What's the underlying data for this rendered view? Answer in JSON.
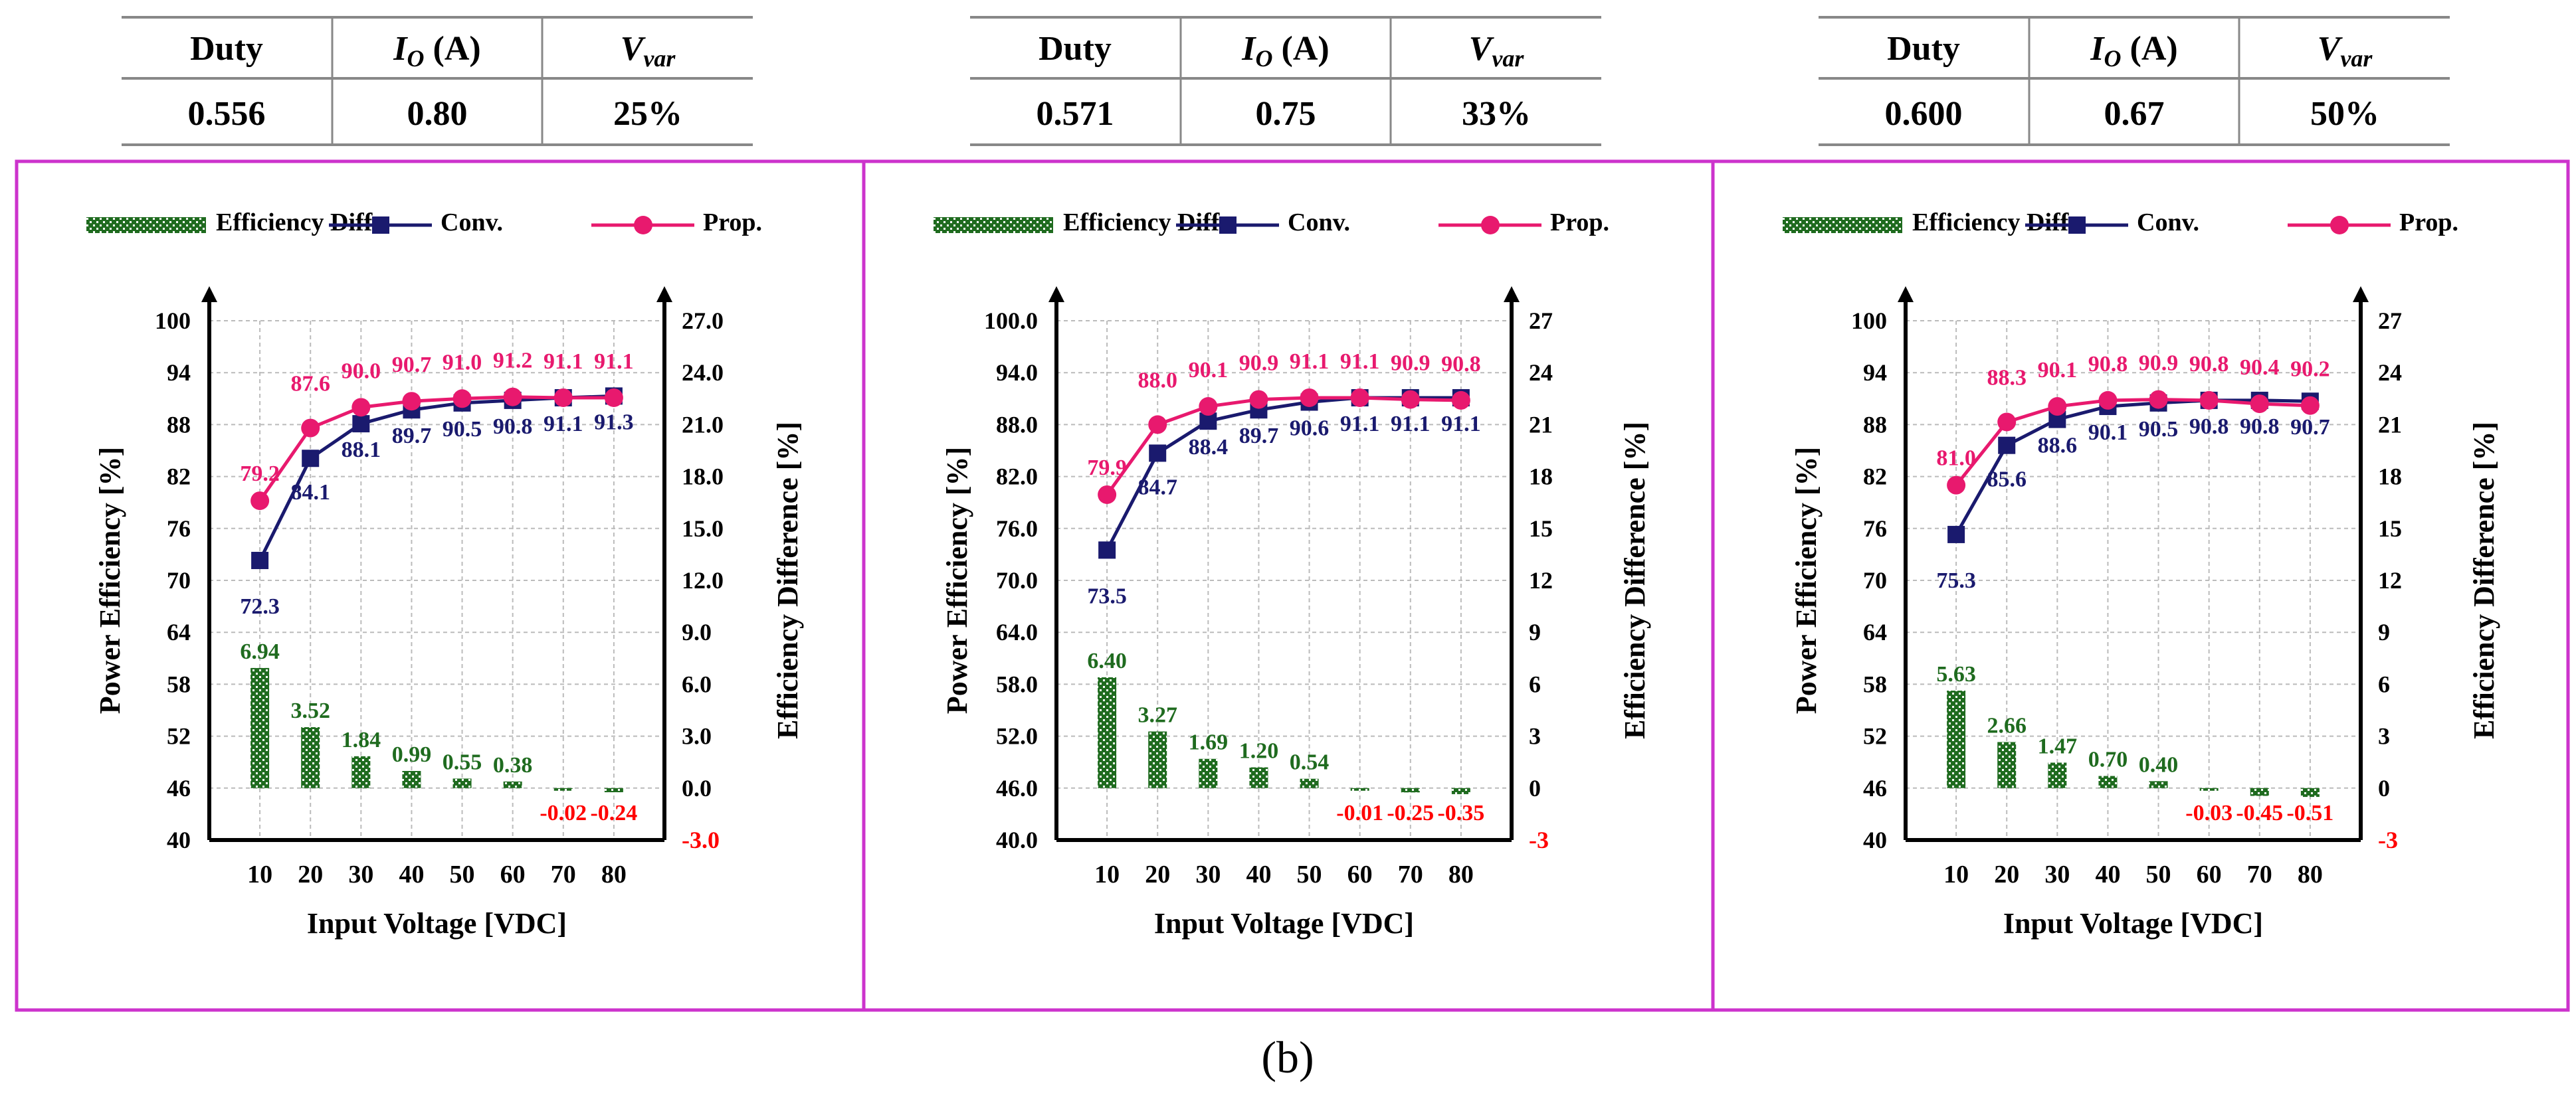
{
  "caption": "(b)",
  "colors": {
    "conv": "#1a1a6e",
    "prop": "#e8196e",
    "diff": "#1f6b1f",
    "neg": "#ff0000",
    "frame": "#cc33cc"
  },
  "tables": [
    {
      "headers": [
        "Duty",
        "I_O (A)",
        "V_var"
      ],
      "values": [
        "0.556",
        "0.80",
        "25%"
      ]
    },
    {
      "headers": [
        "Duty",
        "I_O (A)",
        "V_var"
      ],
      "values": [
        "0.571",
        "0.75",
        "33%"
      ]
    },
    {
      "headers": [
        "Duty",
        "I_O (A)",
        "V_var"
      ],
      "values": [
        "0.600",
        "0.67",
        "50%"
      ]
    }
  ],
  "chart_data": [
    {
      "type": "bar+line",
      "xlabel": "Input Voltage [VDC]",
      "ylabel": "Power Efficiency [%]",
      "y2label": "Efficiency Difference [%]",
      "legend": [
        "Efficiency Diff.",
        "Conv.",
        "Prop."
      ],
      "categories": [
        10,
        20,
        30,
        40,
        50,
        60,
        70,
        80
      ],
      "ylim": [
        40,
        100
      ],
      "y2lim": [
        -3,
        27
      ],
      "yticks": [
        "40",
        "46",
        "52",
        "58",
        "64",
        "70",
        "76",
        "82",
        "88",
        "94",
        "100"
      ],
      "y2ticks": [
        "-3.0",
        "0.0",
        "3.0",
        "6.0",
        "9.0",
        "12.0",
        "15.0",
        "18.0",
        "21.0",
        "24.0",
        "27.0"
      ],
      "series": [
        {
          "name": "Conv.",
          "axis": "left",
          "values": [
            72.3,
            84.1,
            88.1,
            89.7,
            90.5,
            90.8,
            91.1,
            91.3
          ],
          "labels": [
            "72.3",
            "84.1",
            "88.1",
            "89.7",
            "90.5",
            "90.8",
            "91.1",
            "91.3"
          ]
        },
        {
          "name": "Prop.",
          "axis": "left",
          "values": [
            79.2,
            87.6,
            90.0,
            90.7,
            91.0,
            91.2,
            91.1,
            91.1
          ],
          "labels": [
            "79.2",
            "87.6",
            "90.0",
            "90.7",
            "91.0",
            "91.2",
            "91.1",
            "91.1"
          ]
        },
        {
          "name": "Efficiency Diff.",
          "axis": "right",
          "values": [
            6.94,
            3.52,
            1.84,
            0.99,
            0.55,
            0.38,
            -0.02,
            -0.24
          ],
          "labels": [
            "6.94",
            "3.52",
            "1.84",
            "0.99",
            "0.55",
            "0.38",
            "-0.02",
            "-0.24"
          ]
        }
      ]
    },
    {
      "type": "bar+line",
      "xlabel": "Input Voltage [VDC]",
      "ylabel": "Power Efficiency [%]",
      "y2label": "Efficiency Difference [%]",
      "legend": [
        "Efficiency Diff.",
        "Conv.",
        "Prop."
      ],
      "categories": [
        10,
        20,
        30,
        40,
        50,
        60,
        70,
        80
      ],
      "ylim": [
        40,
        100
      ],
      "y2lim": [
        -3,
        27
      ],
      "yticks": [
        "40.0",
        "46.0",
        "52.0",
        "58.0",
        "64.0",
        "70.0",
        "76.0",
        "82.0",
        "88.0",
        "94.0",
        "100.0"
      ],
      "y2ticks": [
        "-3",
        "0",
        "3",
        "6",
        "9",
        "12",
        "15",
        "18",
        "21",
        "24",
        "27"
      ],
      "series": [
        {
          "name": "Conv.",
          "axis": "left",
          "values": [
            73.5,
            84.7,
            88.4,
            89.7,
            90.6,
            91.1,
            91.1,
            91.1
          ],
          "labels": [
            "73.5",
            "84.7",
            "88.4",
            "89.7",
            "90.6",
            "91.1",
            "91.1",
            "91.1"
          ]
        },
        {
          "name": "Prop.",
          "axis": "left",
          "values": [
            79.9,
            88.0,
            90.1,
            90.9,
            91.1,
            91.1,
            90.9,
            90.8
          ],
          "labels": [
            "79.9",
            "88.0",
            "90.1",
            "90.9",
            "91.1",
            "91.1",
            "90.9",
            "90.8"
          ]
        },
        {
          "name": "Efficiency Diff.",
          "axis": "right",
          "values": [
            6.4,
            3.27,
            1.69,
            1.2,
            0.54,
            -0.01,
            -0.25,
            -0.35
          ],
          "labels": [
            "6.40",
            "3.27",
            "1.69",
            "1.20",
            "0.54",
            "-0.01",
            "-0.25",
            "-0.35"
          ]
        }
      ]
    },
    {
      "type": "bar+line",
      "xlabel": "Input Voltage [VDC]",
      "ylabel": "Power Efficiency [%]",
      "y2label": "Efficiency Difference [%]",
      "legend": [
        "Efficiency Diff.",
        "Conv.",
        "Prop."
      ],
      "categories": [
        10,
        20,
        30,
        40,
        50,
        60,
        70,
        80
      ],
      "ylim": [
        40,
        100
      ],
      "y2lim": [
        -3,
        27
      ],
      "yticks": [
        "40",
        "46",
        "52",
        "58",
        "64",
        "70",
        "76",
        "82",
        "88",
        "94",
        "100"
      ],
      "y2ticks": [
        "-3",
        "0",
        "3",
        "6",
        "9",
        "12",
        "15",
        "18",
        "21",
        "24",
        "27"
      ],
      "series": [
        {
          "name": "Conv.",
          "axis": "left",
          "values": [
            75.3,
            85.6,
            88.6,
            90.1,
            90.5,
            90.8,
            90.8,
            90.7
          ],
          "labels": [
            "75.3",
            "85.6",
            "88.6",
            "90.1",
            "90.5",
            "90.8",
            "90.8",
            "90.7"
          ]
        },
        {
          "name": "Prop.",
          "axis": "left",
          "values": [
            81.0,
            88.3,
            90.1,
            90.8,
            90.9,
            90.8,
            90.4,
            90.2
          ],
          "labels": [
            "81.0",
            "88.3",
            "90.1",
            "90.8",
            "90.9",
            "90.8",
            "90.4",
            "90.2"
          ]
        },
        {
          "name": "Efficiency Diff.",
          "axis": "right",
          "values": [
            5.63,
            2.66,
            1.47,
            0.7,
            0.4,
            -0.03,
            -0.45,
            -0.51
          ],
          "labels": [
            "5.63",
            "2.66",
            "1.47",
            "0.70",
            "0.40",
            "-0.03",
            "-0.45",
            "-0.51"
          ]
        }
      ]
    }
  ]
}
